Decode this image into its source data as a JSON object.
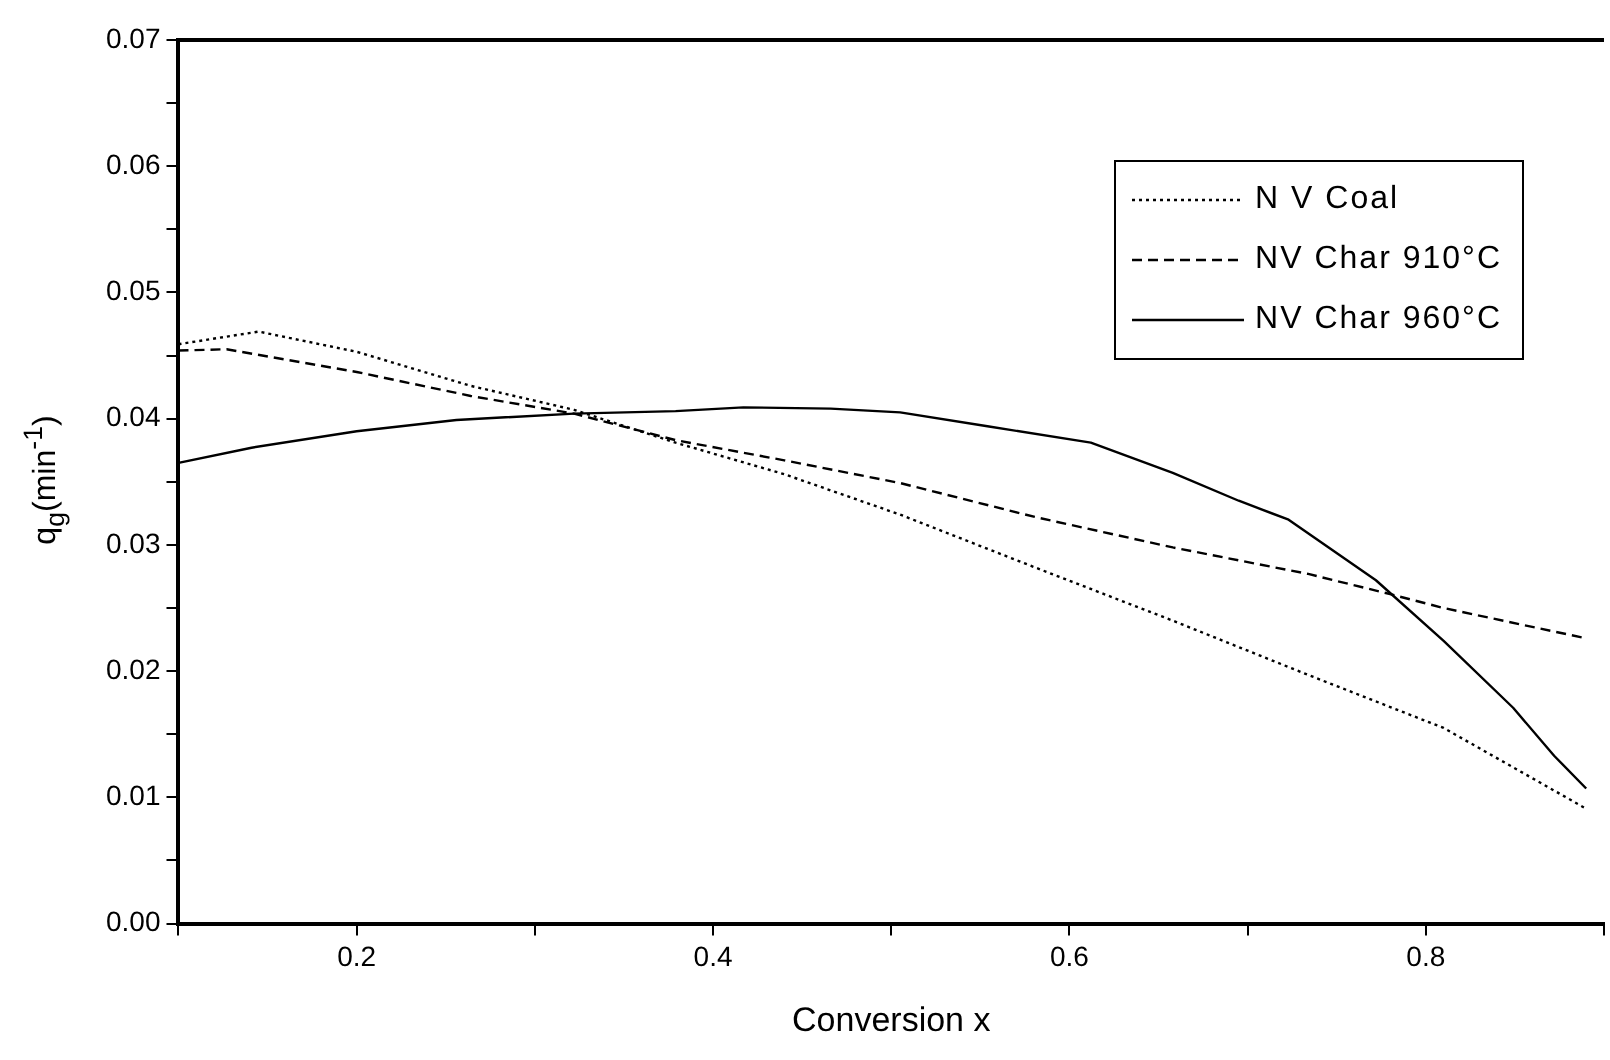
{
  "chart_data": {
    "type": "line",
    "xlabel": "Conversion x",
    "ylabel": "q$_{g}$(min$^{-1}$)",
    "xlim": [
      0.1,
      0.9
    ],
    "xticks": [
      {
        "value": 0.1,
        "label": null
      },
      0.2,
      {
        "value": 0.3,
        "label": null
      },
      0.4,
      {
        "value": 0.5,
        "label": null
      },
      0.6,
      {
        "value": 0.7,
        "label": null
      },
      0.8,
      {
        "value": 0.9,
        "label": null
      }
    ],
    "ylim": [
      0,
      0.07
    ],
    "yticks": [
      "0.00",
      {
        "value": 0.005,
        "label": null
      },
      0.01,
      {
        "value": 0.015,
        "label": null
      },
      0.02,
      {
        "value": 0.025,
        "label": null
      },
      0.03,
      {
        "value": 0.035,
        "label": null
      },
      0.04,
      {
        "value": 0.045,
        "label": null
      },
      0.05,
      {
        "value": 0.055,
        "label": null
      },
      0.06,
      {
        "value": 0.065,
        "label": null
      },
      0.07
    ],
    "grid": false,
    "legend": "top right",
    "marker": "none",
    "series": [
      {
        "name": "N V Coal",
        "color": "#000000",
        "line_style": "dotted",
        "x": [
          0.1,
          0.145,
          0.2,
          0.264,
          0.322,
          0.379,
          0.44,
          0.505,
          0.581,
          0.658,
          0.734,
          0.81,
          0.89
        ],
        "values": [
          0.0459,
          0.0469,
          0.0453,
          0.0426,
          0.0407,
          0.0381,
          0.0356,
          0.0324,
          0.0282,
          0.024,
          0.0197,
          0.0155,
          0.0091
        ]
      },
      {
        "name": "NV Char 910°C",
        "color": "#000000",
        "line_style": "dashed",
        "x": [
          0.1,
          0.127,
          0.2,
          0.264,
          0.322,
          0.379,
          0.44,
          0.505,
          0.581,
          0.658,
          0.734,
          0.78,
          0.81,
          0.89
        ],
        "values": [
          0.0454,
          0.0455,
          0.0437,
          0.0418,
          0.0404,
          0.0383,
          0.0367,
          0.0349,
          0.0322,
          0.0298,
          0.0277,
          0.0261,
          0.025,
          0.0226
        ]
      },
      {
        "name": "NV Char 960°C",
        "color": "#000000",
        "line_style": "solid",
        "x": [
          0.1,
          0.141,
          0.2,
          0.256,
          0.322,
          0.379,
          0.417,
          0.466,
          0.505,
          0.554,
          0.612,
          0.658,
          0.695,
          0.723,
          0.772,
          0.81,
          0.849,
          0.872,
          0.89
        ],
        "values": [
          0.0365,
          0.0377,
          0.039,
          0.0399,
          0.0404,
          0.0406,
          0.0409,
          0.0408,
          0.0405,
          0.0394,
          0.0381,
          0.0357,
          0.0335,
          0.032,
          0.0272,
          0.0224,
          0.0171,
          0.0133,
          0.0107
        ]
      }
    ]
  }
}
